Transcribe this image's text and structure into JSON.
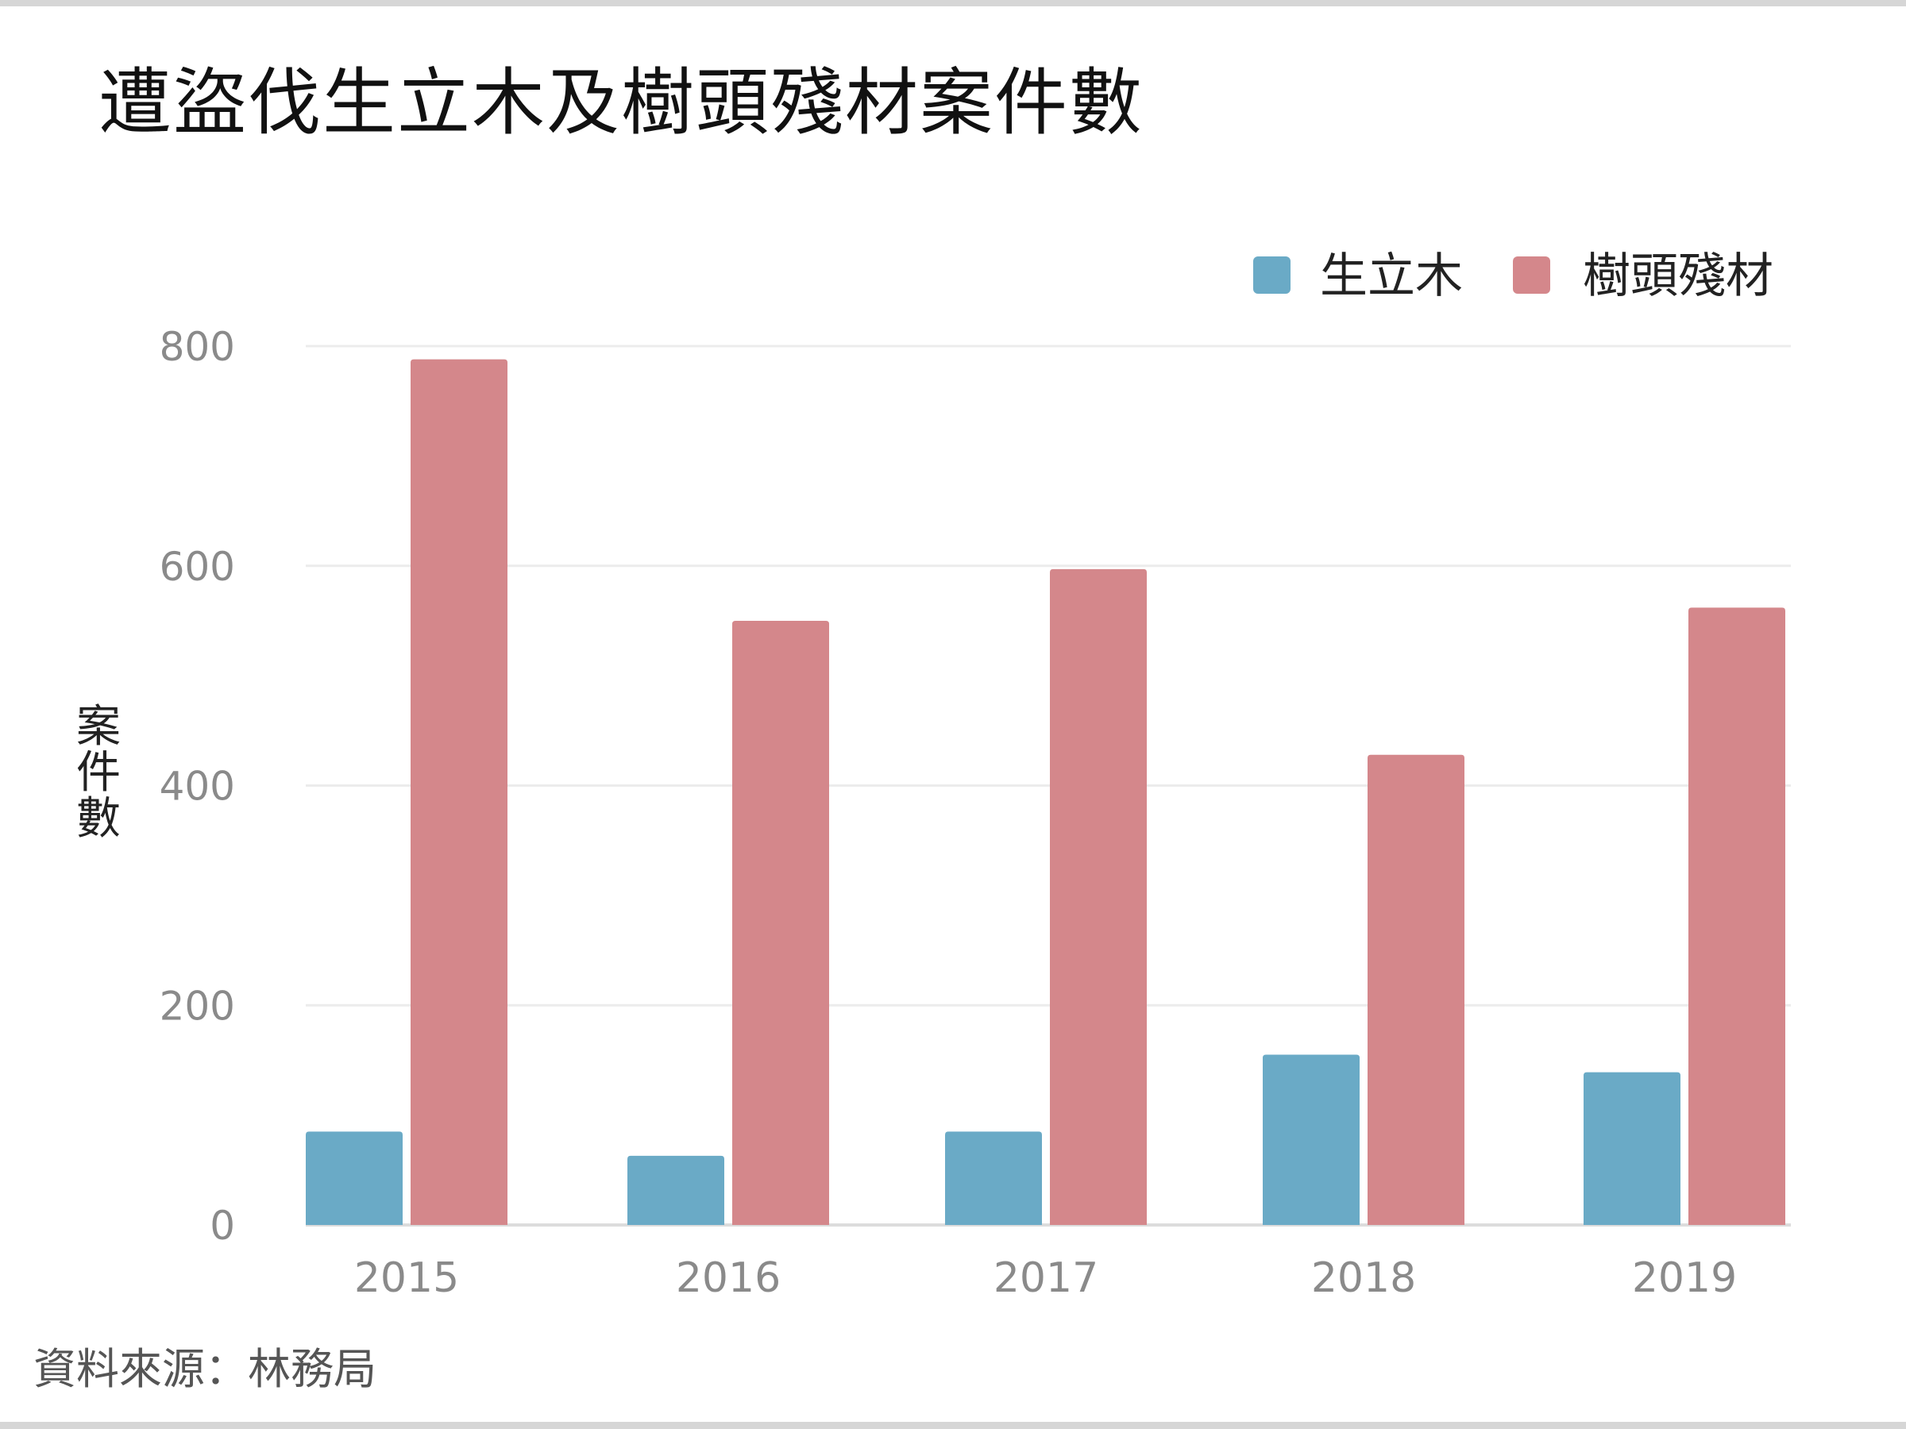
{
  "header": {
    "title": "遭盜伐生立木及樹頭殘材案件數"
  },
  "footer": {
    "source": "資料來源：林務局"
  },
  "chart_data": {
    "type": "bar",
    "title": "遭盜伐生立木及樹頭殘材案件數",
    "xlabel": "",
    "ylabel": "案件數",
    "categories": [
      "2015",
      "2016",
      "2017",
      "2018",
      "2019"
    ],
    "series": [
      {
        "name": "生立木",
        "color": "#6aaac6",
        "values": [
          85,
          63,
          85,
          155,
          139
        ]
      },
      {
        "name": "樹頭殘材",
        "color": "#d4878b",
        "values": [
          788,
          550,
          597,
          428,
          562
        ]
      }
    ],
    "ylim": [
      0,
      800
    ],
    "yticks": [
      0,
      200,
      400,
      600,
      800
    ],
    "grid": true,
    "legend": "top-right"
  }
}
